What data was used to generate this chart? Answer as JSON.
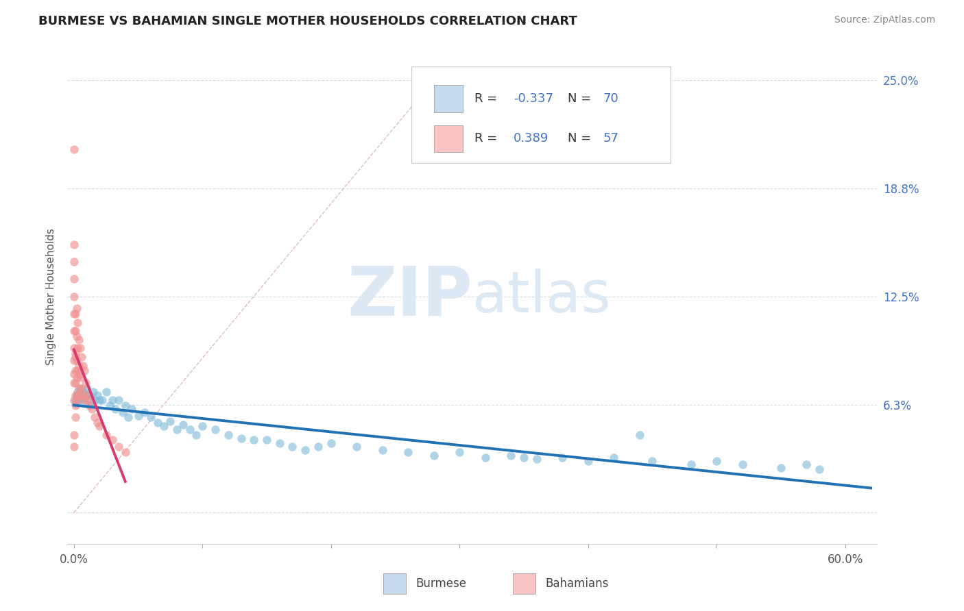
{
  "title": "BURMESE VS BAHAMIAN SINGLE MOTHER HOUSEHOLDS CORRELATION CHART",
  "source": "Source: ZipAtlas.com",
  "xlim": [
    -0.005,
    0.625
  ],
  "ylim": [
    -0.018,
    0.268
  ],
  "yticks": [
    0.0,
    0.0625,
    0.125,
    0.1875,
    0.25
  ],
  "ylabels_right": [
    "",
    "6.3%",
    "12.5%",
    "18.8%",
    "25.0%"
  ],
  "xticks": [
    0.0,
    0.1,
    0.2,
    0.3,
    0.4,
    0.5,
    0.6
  ],
  "xlabels": [
    "0.0%",
    "",
    "",
    "",
    "",
    "",
    "60.0%"
  ],
  "burmese_color": "#7ab8d9",
  "bahamian_color": "#f09090",
  "burmese_legend_fill": "#c6dbef",
  "bahamian_legend_fill": "#fcc5c5",
  "trend_blue": "#2171b5",
  "trend_pink": "#d63a6e",
  "ref_line_color": "#d0a0a8",
  "grid_color": "#d0dce8",
  "watermark": "ZIPatlas",
  "watermark_color": "#dde8f5",
  "ylabel": "Single Mother Households",
  "legend_R_blue": "-0.337",
  "legend_N_blue": "70",
  "legend_R_pink": "0.389",
  "legend_N_pink": "57",
  "legend_text_color": "#4472c4",
  "label_color": "#4472c4",
  "title_color": "#222222",
  "source_color": "#888888",
  "axis_label_color": "#555555",
  "burmese_label": "Burmese",
  "bahamian_label": "Bahamians",
  "burmese_x": [
    0.003,
    0.004,
    0.005,
    0.006,
    0.007,
    0.008,
    0.009,
    0.01,
    0.011,
    0.012,
    0.013,
    0.015,
    0.016,
    0.018,
    0.02,
    0.022,
    0.025,
    0.028,
    0.03,
    0.032,
    0.035,
    0.038,
    0.04,
    0.042,
    0.045,
    0.05,
    0.055,
    0.06,
    0.065,
    0.07,
    0.075,
    0.08,
    0.085,
    0.09,
    0.095,
    0.1,
    0.11,
    0.12,
    0.13,
    0.14,
    0.15,
    0.16,
    0.17,
    0.18,
    0.19,
    0.2,
    0.22,
    0.24,
    0.26,
    0.28,
    0.3,
    0.32,
    0.34,
    0.36,
    0.38,
    0.4,
    0.42,
    0.45,
    0.48,
    0.5,
    0.52,
    0.55,
    0.58,
    0.001,
    0.002,
    0.001,
    0.003,
    0.35,
    0.44,
    0.57
  ],
  "burmese_y": [
    0.068,
    0.065,
    0.072,
    0.066,
    0.07,
    0.063,
    0.068,
    0.072,
    0.065,
    0.068,
    0.062,
    0.07,
    0.065,
    0.068,
    0.065,
    0.065,
    0.07,
    0.062,
    0.065,
    0.06,
    0.065,
    0.058,
    0.062,
    0.055,
    0.06,
    0.056,
    0.058,
    0.055,
    0.052,
    0.05,
    0.053,
    0.048,
    0.051,
    0.048,
    0.045,
    0.05,
    0.048,
    0.045,
    0.043,
    0.042,
    0.042,
    0.04,
    0.038,
    0.036,
    0.038,
    0.04,
    0.038,
    0.036,
    0.035,
    0.033,
    0.035,
    0.032,
    0.033,
    0.031,
    0.032,
    0.03,
    0.032,
    0.03,
    0.028,
    0.03,
    0.028,
    0.026,
    0.025,
    0.065,
    0.068,
    0.063,
    0.07,
    0.032,
    0.045,
    0.028
  ],
  "bahamian_x": [
    0.0,
    0.0,
    0.0,
    0.0,
    0.0,
    0.0,
    0.0,
    0.0,
    0.0,
    0.0,
    0.0,
    0.0,
    0.001,
    0.001,
    0.001,
    0.001,
    0.001,
    0.001,
    0.001,
    0.001,
    0.002,
    0.002,
    0.002,
    0.002,
    0.002,
    0.003,
    0.003,
    0.003,
    0.003,
    0.004,
    0.004,
    0.004,
    0.005,
    0.005,
    0.005,
    0.006,
    0.006,
    0.007,
    0.007,
    0.008,
    0.008,
    0.009,
    0.01,
    0.011,
    0.012,
    0.014,
    0.016,
    0.018,
    0.02,
    0.025,
    0.03,
    0.035,
    0.04,
    0.005,
    0.0,
    0.0,
    0.001
  ],
  "bahamian_y": [
    0.21,
    0.155,
    0.145,
    0.135,
    0.125,
    0.115,
    0.105,
    0.095,
    0.088,
    0.08,
    0.075,
    0.065,
    0.115,
    0.105,
    0.092,
    0.082,
    0.075,
    0.068,
    0.062,
    0.055,
    0.118,
    0.102,
    0.088,
    0.078,
    0.065,
    0.11,
    0.095,
    0.082,
    0.068,
    0.1,
    0.085,
    0.072,
    0.095,
    0.08,
    0.068,
    0.09,
    0.072,
    0.085,
    0.068,
    0.082,
    0.065,
    0.075,
    0.068,
    0.065,
    0.062,
    0.06,
    0.055,
    0.052,
    0.05,
    0.045,
    0.042,
    0.038,
    0.035,
    0.078,
    0.045,
    0.038,
    0.09
  ],
  "ref_line_x": [
    0.0,
    0.28
  ],
  "ref_line_y": [
    0.0,
    0.25
  ]
}
